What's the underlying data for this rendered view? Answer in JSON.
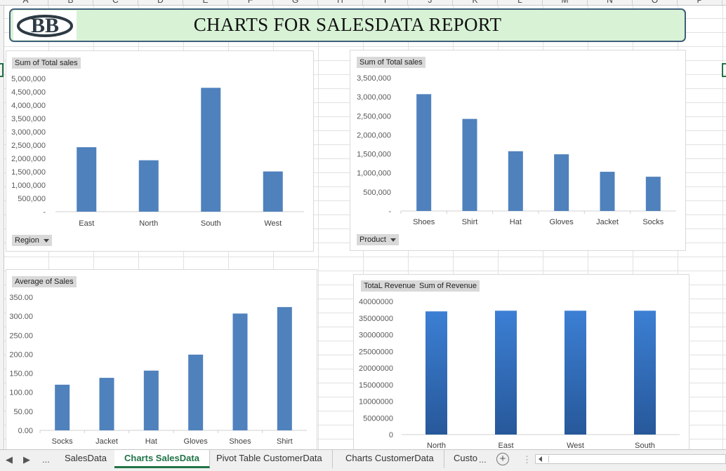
{
  "sheet": {
    "columns": [
      "A",
      "B",
      "C",
      "D",
      "E",
      "F",
      "G",
      "H",
      "I",
      "J",
      "K",
      "L",
      "M",
      "N",
      "O",
      "P"
    ]
  },
  "banner": {
    "title": "CHARTS FOR SALESDATA REPORT",
    "logo_text": "BB"
  },
  "charts": {
    "region": {
      "field_label": "Sum of Total sales",
      "filter_label": "Region",
      "y_ticks": [
        "5,000,000",
        "4,500,000",
        "4,000,000",
        "3,500,000",
        "3,000,000",
        "2,500,000",
        "2,000,000",
        "1,500,000",
        "1,000,000",
        "500,000",
        "-"
      ]
    },
    "product": {
      "field_label": "Sum of Total sales",
      "filter_label": "Product",
      "y_ticks": [
        "3,500,000",
        "3,000,000",
        "2,500,000",
        "2,000,000",
        "1,500,000",
        "1,000,000",
        "500,000",
        "-"
      ]
    },
    "avg": {
      "field_label": "Average of Sales",
      "y_ticks": [
        "350.00",
        "300.00",
        "250.00",
        "200.00",
        "150.00",
        "100.00",
        "50.00",
        "0.00"
      ]
    },
    "revenue": {
      "field_label_1": "TotaL Revenue",
      "field_label_2": "Sum of Revenue",
      "y_ticks": [
        "40000000",
        "35000000",
        "30000000",
        "25000000",
        "20000000",
        "15000000",
        "10000000",
        "5000000",
        "0"
      ]
    }
  },
  "chart_data": [
    {
      "type": "bar",
      "title": "",
      "categories": [
        "East",
        "North",
        "South",
        "West"
      ],
      "values": [
        2420000,
        1930000,
        4650000,
        1510000
      ],
      "ylim": [
        0,
        5000000
      ],
      "color": "#4f81bd"
    },
    {
      "type": "bar",
      "title": "",
      "categories": [
        "Shoes",
        "Shirt",
        "Hat",
        "Gloves",
        "Jacket",
        "Socks"
      ],
      "values": [
        3070000,
        2420000,
        1570000,
        1490000,
        1030000,
        900000
      ],
      "ylim": [
        0,
        3500000
      ],
      "color": "#4f81bd"
    },
    {
      "type": "bar",
      "title": "",
      "categories": [
        "Socks",
        "Jacket",
        "Hat",
        "Gloves",
        "Shoes",
        "Shirt"
      ],
      "values": [
        120,
        138,
        157,
        199,
        307,
        324
      ],
      "ylim": [
        0,
        350
      ],
      "color": "#4f81bd"
    },
    {
      "type": "bar",
      "title": "",
      "categories": [
        "North",
        "East",
        "West",
        "South"
      ],
      "values": [
        37000000,
        37200000,
        37200000,
        37200000
      ],
      "ylim": [
        0,
        40000000
      ],
      "color": "#2e62a6"
    }
  ],
  "tabs": {
    "nav_prev": "◀",
    "nav_next": "▶",
    "nav_more": "...",
    "items": [
      "SalesData",
      "Charts SalesData",
      "Pivot Table CustomerData",
      "Charts CustomerData",
      "Custo"
    ],
    "overflow": "...",
    "add_label": "+"
  }
}
